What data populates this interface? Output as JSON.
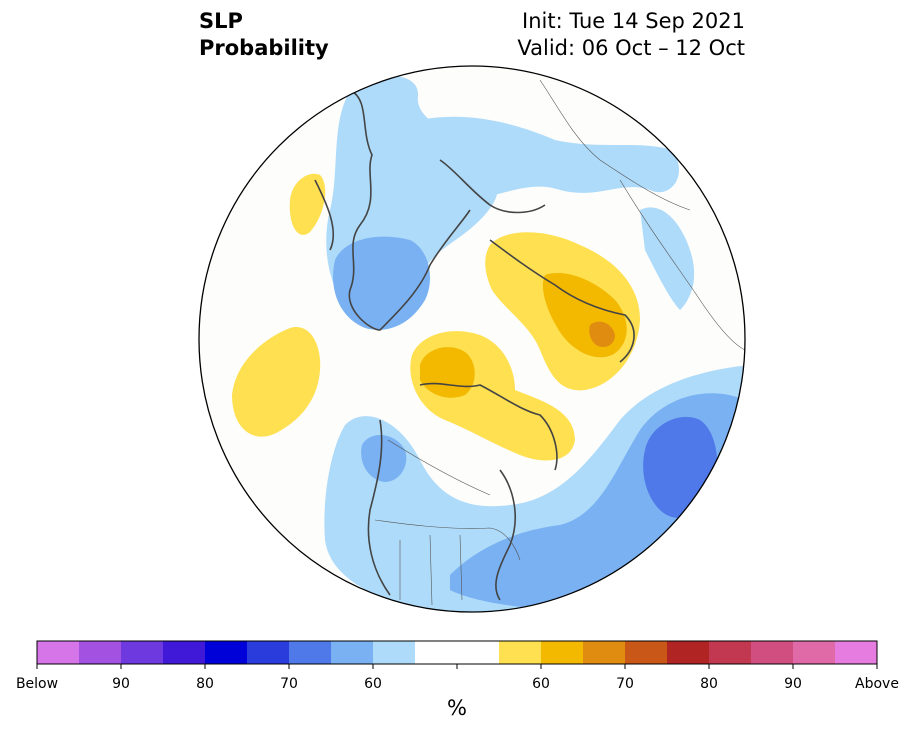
{
  "title": {
    "line1": "SLP",
    "line2": "Probability",
    "init": "Init: Tue 14 Sep 2021",
    "valid": "Valid: 06 Oct – 12 Oct"
  },
  "colorbar": {
    "unit": "%",
    "colors": [
      "#d675e8",
      "#a251e0",
      "#6f39e0",
      "#4018d8",
      "#0000d8",
      "#2a3ddc",
      "#4f79e8",
      "#79b1f2",
      "#aedbfa",
      "#ffffff",
      "#ffffff",
      "#fee050",
      "#f3b800",
      "#e08c10",
      "#c95818",
      "#b02424",
      "#c23850",
      "#d04f80",
      "#e06aa8",
      "#e77ce0"
    ],
    "tick_labels": [
      "Below",
      "90",
      "80",
      "70",
      "60",
      "60",
      "70",
      "80",
      "90",
      "Above"
    ]
  },
  "map": {
    "projection": "north-polar-stereographic",
    "legend_colors": {
      "below_60": "#aedbfa",
      "below_70": "#79b1f2",
      "below_80": "#4f79e8",
      "above_60": "#fee050",
      "above_70": "#f3b800",
      "above_80": "#e08c10"
    }
  }
}
